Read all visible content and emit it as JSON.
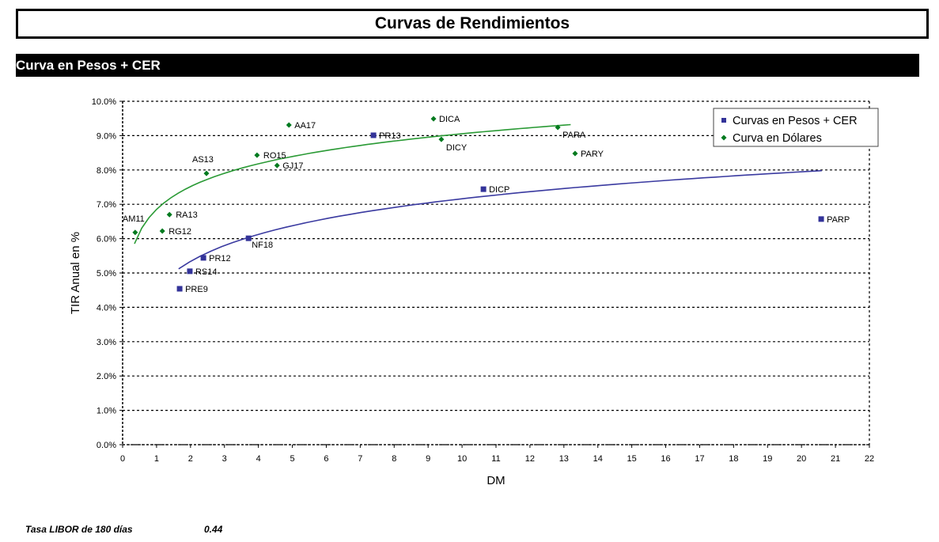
{
  "page": {
    "title": "Curvas de Rendimientos",
    "section_title": "Curva en Pesos + CER"
  },
  "footer": {
    "libor_label": "Tasa LIBOR de 180 días",
    "libor_value": "0.44"
  },
  "colors": {
    "pesos_series": "#333399",
    "dolares_series": "#007a1f",
    "dolares_trend": "#2a9a35",
    "pesos_trend": "#3a3aa0",
    "grid": "#000000"
  },
  "chart_data": {
    "type": "scatter",
    "title": "",
    "xlabel": "DM",
    "ylabel": "TIR Anual en %",
    "xlim": [
      0,
      22
    ],
    "ylim": [
      0,
      10
    ],
    "x_ticks": [
      "0",
      "1",
      "2",
      "3",
      "4",
      "5",
      "6",
      "7",
      "8",
      "9",
      "10",
      "11",
      "12",
      "13",
      "14",
      "15",
      "16",
      "17",
      "18",
      "19",
      "20",
      "21",
      "22"
    ],
    "y_ticks": [
      "0.0%",
      "1.0%",
      "2.0%",
      "3.0%",
      "4.0%",
      "5.0%",
      "6.0%",
      "7.0%",
      "8.0%",
      "9.0%",
      "10.0%"
    ],
    "grid": true,
    "legend_position": "top-right",
    "series": [
      {
        "name": "Curvas en Pesos + CER",
        "marker": "square",
        "color": "#333399",
        "points": [
          {
            "label": "PRE9",
            "x": 1.68,
            "y": 4.54
          },
          {
            "label": "RS14",
            "x": 1.98,
            "y": 5.05
          },
          {
            "label": "PR12",
            "x": 2.38,
            "y": 5.44
          },
          {
            "label": "NF18",
            "x": 3.71,
            "y": 6.01
          },
          {
            "label": "PR13",
            "x": 7.39,
            "y": 9.01
          },
          {
            "label": "DICP",
            "x": 10.63,
            "y": 7.44
          },
          {
            "label": "PARP",
            "x": 20.58,
            "y": 6.57
          }
        ],
        "trendline": {
          "type": "logarithmic",
          "x_from": 1.65,
          "x_to": 20.6,
          "y_from": 5.12,
          "y_to": 7.98
        }
      },
      {
        "name": "Curva en Dólares",
        "marker": "diamond",
        "color": "#007a1f",
        "points": [
          {
            "label": "AM11",
            "x": 0.37,
            "y": 6.18
          },
          {
            "label": "RG12",
            "x": 1.17,
            "y": 6.22
          },
          {
            "label": "RA13",
            "x": 1.38,
            "y": 6.7
          },
          {
            "label": "AS13",
            "x": 2.47,
            "y": 7.9
          },
          {
            "label": "RO15",
            "x": 3.96,
            "y": 8.43
          },
          {
            "label": "GJ17",
            "x": 4.55,
            "y": 8.13
          },
          {
            "label": "AA17",
            "x": 4.9,
            "y": 9.31
          },
          {
            "label": "DICA",
            "x": 9.16,
            "y": 9.49
          },
          {
            "label": "DICY",
            "x": 9.39,
            "y": 8.89
          },
          {
            "label": "PARA",
            "x": 12.82,
            "y": 9.24
          },
          {
            "label": "PARY",
            "x": 13.33,
            "y": 8.48
          }
        ],
        "trendline": {
          "type": "logarithmic",
          "x_from": 0.35,
          "x_to": 13.2,
          "y_from": 5.85,
          "y_to": 9.32
        }
      }
    ]
  }
}
